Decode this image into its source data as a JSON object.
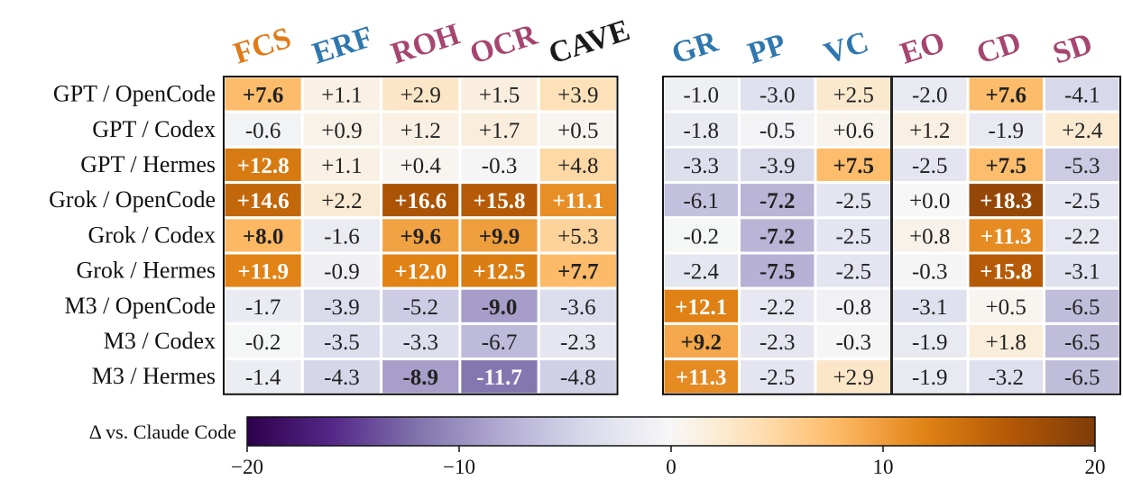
{
  "chart_data": {
    "type": "heatmap",
    "title": "",
    "rows": [
      "GPT / OpenCode",
      "GPT / Codex",
      "GPT / Hermes",
      "Grok / OpenCode",
      "Grok / Codex",
      "Grok / Hermes",
      "M3 / OpenCode",
      "M3 / Codex",
      "M3 / Hermes"
    ],
    "panels": [
      {
        "columns": [
          {
            "label": "FCS",
            "color": "#e07b1a"
          },
          {
            "label": "ERF",
            "color": "#2f77ae"
          },
          {
            "label": "ROH",
            "color": "#a6456f"
          },
          {
            "label": "OCR",
            "color": "#a6456f"
          },
          {
            "label": "CAVE",
            "color": "#1a1a1a"
          }
        ],
        "values": [
          [
            7.6,
            1.1,
            2.9,
            1.5,
            3.9
          ],
          [
            -0.6,
            0.9,
            1.2,
            1.7,
            0.5
          ],
          [
            12.8,
            1.1,
            0.4,
            -0.3,
            4.8
          ],
          [
            14.6,
            2.2,
            16.6,
            15.8,
            11.1
          ],
          [
            8.0,
            -1.6,
            9.6,
            9.9,
            5.3
          ],
          [
            11.9,
            -0.9,
            12.0,
            12.5,
            7.7
          ],
          [
            -1.7,
            -3.9,
            -5.2,
            -9.0,
            -3.6
          ],
          [
            -0.2,
            -3.5,
            -3.3,
            -6.7,
            -2.3
          ],
          [
            -1.4,
            -4.3,
            -8.9,
            -11.7,
            -4.8
          ]
        ],
        "labels": [
          [
            "+7.6",
            "+1.1",
            "+2.9",
            "+1.5",
            "+3.9"
          ],
          [
            "-0.6",
            "+0.9",
            "+1.2",
            "+1.7",
            "+0.5"
          ],
          [
            "+12.8",
            "+1.1",
            "+0.4",
            "-0.3",
            "+4.8"
          ],
          [
            "+14.6",
            "+2.2",
            "+16.6",
            "+15.8",
            "+11.1"
          ],
          [
            "+8.0",
            "-1.6",
            "+9.6",
            "+9.9",
            "+5.3"
          ],
          [
            "+11.9",
            "-0.9",
            "+12.0",
            "+12.5",
            "+7.7"
          ],
          [
            "-1.7",
            "-3.9",
            "-5.2",
            "-9.0",
            "-3.6"
          ],
          [
            "-0.2",
            "-3.5",
            "-3.3",
            "-6.7",
            "-2.3"
          ],
          [
            "-1.4",
            "-4.3",
            "-8.9",
            "-11.7",
            "-4.8"
          ]
        ],
        "bold": [
          [
            1,
            0,
            0,
            0,
            0
          ],
          [
            0,
            0,
            0,
            0,
            0
          ],
          [
            1,
            0,
            0,
            0,
            0
          ],
          [
            1,
            0,
            1,
            1,
            1
          ],
          [
            1,
            0,
            1,
            1,
            0
          ],
          [
            1,
            0,
            1,
            1,
            1
          ],
          [
            0,
            0,
            0,
            1,
            0
          ],
          [
            0,
            0,
            0,
            0,
            0
          ],
          [
            0,
            0,
            1,
            1,
            0
          ]
        ]
      },
      {
        "columns": [
          {
            "label": "GR",
            "color": "#2f77ae"
          },
          {
            "label": "PP",
            "color": "#2f77ae"
          },
          {
            "label": "VC",
            "color": "#2f77ae"
          },
          {
            "label": "EO",
            "color": "#a6456f"
          },
          {
            "label": "CD",
            "color": "#a6456f"
          },
          {
            "label": "SD",
            "color": "#a6456f"
          }
        ],
        "divider_after_column": 3,
        "values": [
          [
            -1.0,
            -3.0,
            2.5,
            -2.0,
            7.6,
            -4.1
          ],
          [
            -1.8,
            -0.5,
            0.6,
            1.2,
            -1.9,
            2.4
          ],
          [
            -3.3,
            -3.9,
            7.5,
            -2.5,
            7.5,
            -5.3
          ],
          [
            -6.1,
            -7.2,
            -2.5,
            0.0,
            18.3,
            -2.5
          ],
          [
            -0.2,
            -7.2,
            -2.5,
            0.8,
            11.3,
            -2.2
          ],
          [
            -2.4,
            -7.5,
            -2.5,
            -0.3,
            15.8,
            -3.1
          ],
          [
            12.1,
            -2.2,
            -0.8,
            -3.1,
            0.5,
            -6.5
          ],
          [
            9.2,
            -2.3,
            -0.3,
            -1.9,
            1.8,
            -6.5
          ],
          [
            11.3,
            -2.5,
            2.9,
            -1.9,
            -3.2,
            -6.5
          ]
        ],
        "labels": [
          [
            "-1.0",
            "-3.0",
            "+2.5",
            "-2.0",
            "+7.6",
            "-4.1"
          ],
          [
            "-1.8",
            "-0.5",
            "+0.6",
            "+1.2",
            "-1.9",
            "+2.4"
          ],
          [
            "-3.3",
            "-3.9",
            "+7.5",
            "-2.5",
            "+7.5",
            "-5.3"
          ],
          [
            "-6.1",
            "-7.2",
            "-2.5",
            "+0.0",
            "+18.3",
            "-2.5"
          ],
          [
            "-0.2",
            "-7.2",
            "-2.5",
            "+0.8",
            "+11.3",
            "-2.2"
          ],
          [
            "-2.4",
            "-7.5",
            "-2.5",
            "-0.3",
            "+15.8",
            "-3.1"
          ],
          [
            "+12.1",
            "-2.2",
            "-0.8",
            "-3.1",
            "+0.5",
            "-6.5"
          ],
          [
            "+9.2",
            "-2.3",
            "-0.3",
            "-1.9",
            "+1.8",
            "-6.5"
          ],
          [
            "+11.3",
            "-2.5",
            "+2.9",
            "-1.9",
            "-3.2",
            "-6.5"
          ]
        ],
        "bold": [
          [
            0,
            0,
            0,
            0,
            1,
            0
          ],
          [
            0,
            0,
            0,
            0,
            0,
            0
          ],
          [
            0,
            0,
            1,
            0,
            1,
            0
          ],
          [
            0,
            1,
            0,
            0,
            1,
            0
          ],
          [
            0,
            1,
            0,
            0,
            1,
            0
          ],
          [
            0,
            1,
            0,
            0,
            1,
            0
          ],
          [
            1,
            0,
            0,
            0,
            0,
            0
          ],
          [
            1,
            0,
            0,
            0,
            0,
            0
          ],
          [
            1,
            0,
            0,
            0,
            0,
            0
          ]
        ]
      }
    ],
    "colorbar": {
      "label": "Δ vs. Claude Code",
      "range": [
        -20,
        20
      ],
      "ticks": [
        -20,
        -10,
        0,
        10,
        20
      ],
      "tick_labels": [
        "−20",
        "−10",
        "0",
        "10",
        "20"
      ],
      "colormap": "PuOr_r"
    }
  }
}
